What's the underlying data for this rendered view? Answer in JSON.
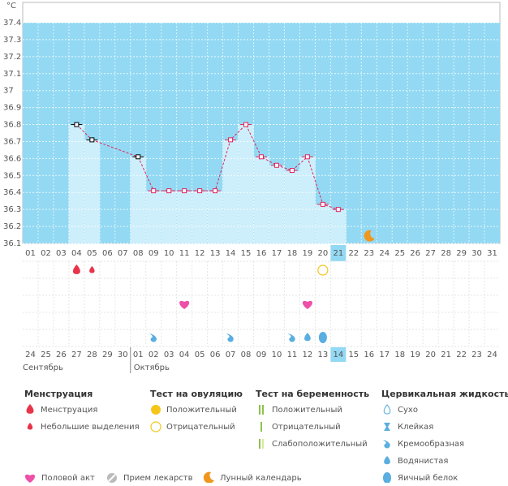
{
  "chart_data": {
    "type": "line",
    "unit": "°C",
    "categories": [
      "01",
      "02",
      "03",
      "04",
      "05",
      "06",
      "07",
      "08",
      "09",
      "10",
      "11",
      "12",
      "13",
      "14",
      "15",
      "16",
      "17",
      "18",
      "19",
      "20",
      "21",
      "22",
      "23",
      "24",
      "25",
      "26",
      "27",
      "28",
      "29",
      "30",
      "31"
    ],
    "today": "21",
    "series": [
      {
        "color": "#e0245e",
        "values": [
          null,
          null,
          null,
          36.8,
          36.71,
          null,
          null,
          36.61,
          36.41,
          36.41,
          36.41,
          36.41,
          36.41,
          36.71,
          36.8,
          36.61,
          36.56,
          36.53,
          36.61,
          36.33,
          36.3,
          null,
          null,
          null,
          null,
          null,
          null,
          null,
          null,
          null,
          null
        ],
        "point_colors": [
          "#000",
          "#000",
          "#000",
          "#000",
          "#000",
          "#000",
          "#000",
          "#000",
          "#e0245e",
          "#e0245e",
          "#e0245e",
          "#e0245e",
          "#e0245e",
          "#e0245e",
          "#e0245e",
          "#e0245e",
          "#e0245e",
          "#e0245e",
          "#e0245e",
          "#e0245e",
          "#e0245e",
          "#e0245e",
          "#e0245e",
          "#e0245e",
          "#e0245e",
          "#e0245e",
          "#e0245e",
          "#e0245e",
          "#e0245e",
          "#e0245e",
          "#e0245e"
        ]
      }
    ],
    "ylim": [
      36.1,
      37.4
    ],
    "yticks": [
      36.1,
      36.2,
      36.3,
      36.4,
      36.5,
      36.6,
      36.7,
      36.8,
      36.9,
      37,
      37.1,
      37.2,
      37.3,
      37.4
    ],
    "grid": true,
    "background": "#93d9f3",
    "bar_color": "#cdeffb"
  },
  "calendar": {
    "dates": [
      "24",
      "25",
      "26",
      "27",
      "28",
      "29",
      "30",
      "01",
      "02",
      "03",
      "04",
      "05",
      "06",
      "07",
      "08",
      "09",
      "10",
      "11",
      "12",
      "13",
      "14",
      "15",
      "16",
      "17",
      "18",
      "19",
      "20",
      "21",
      "22",
      "23",
      "24"
    ],
    "weekend": [
      false,
      false,
      false,
      false,
      false,
      true,
      true,
      false,
      false,
      false,
      false,
      false,
      true,
      true,
      false,
      false,
      false,
      false,
      false,
      true,
      false,
      false,
      false,
      false,
      false,
      false,
      true,
      true,
      false,
      false,
      false
    ],
    "today": "14",
    "months": [
      "Сентябрь",
      "Октябрь"
    ]
  },
  "legend": {
    "groups": [
      {
        "title": "Менструация",
        "items": [
          {
            "label": "Менструация",
            "days": [
              "04"
            ]
          },
          {
            "label": "Небольшие выделения",
            "days": [
              "05"
            ]
          }
        ]
      },
      {
        "title": "Тест на овуляцию",
        "items": [
          {
            "label": "Положительный",
            "days": []
          },
          {
            "label": "Отрицательный",
            "days": [
              "20"
            ]
          }
        ]
      },
      {
        "title": "Тест на беременность",
        "items": [
          {
            "label": "Положительный",
            "days": []
          },
          {
            "label": "Отрицательный",
            "days": []
          },
          {
            "label": "Слабоположительный",
            "days": []
          }
        ]
      },
      {
        "title": "Цервикальная жидкость",
        "items": [
          {
            "label": "Сухо",
            "days": []
          },
          {
            "label": "Клейкая",
            "days": []
          },
          {
            "label": "Кремообразная",
            "days": [
              "09",
              "14",
              "18"
            ]
          },
          {
            "label": "Водянистая",
            "days": [
              "19"
            ]
          },
          {
            "label": "Яичный белок",
            "days": [
              "20"
            ]
          }
        ]
      }
    ],
    "extra": [
      {
        "label": "Половой акт",
        "days": [
          "11",
          "19"
        ]
      },
      {
        "label": "Прием лекарств",
        "days": []
      },
      {
        "label": "Лунный календарь",
        "days": [
          "23"
        ]
      }
    ]
  }
}
